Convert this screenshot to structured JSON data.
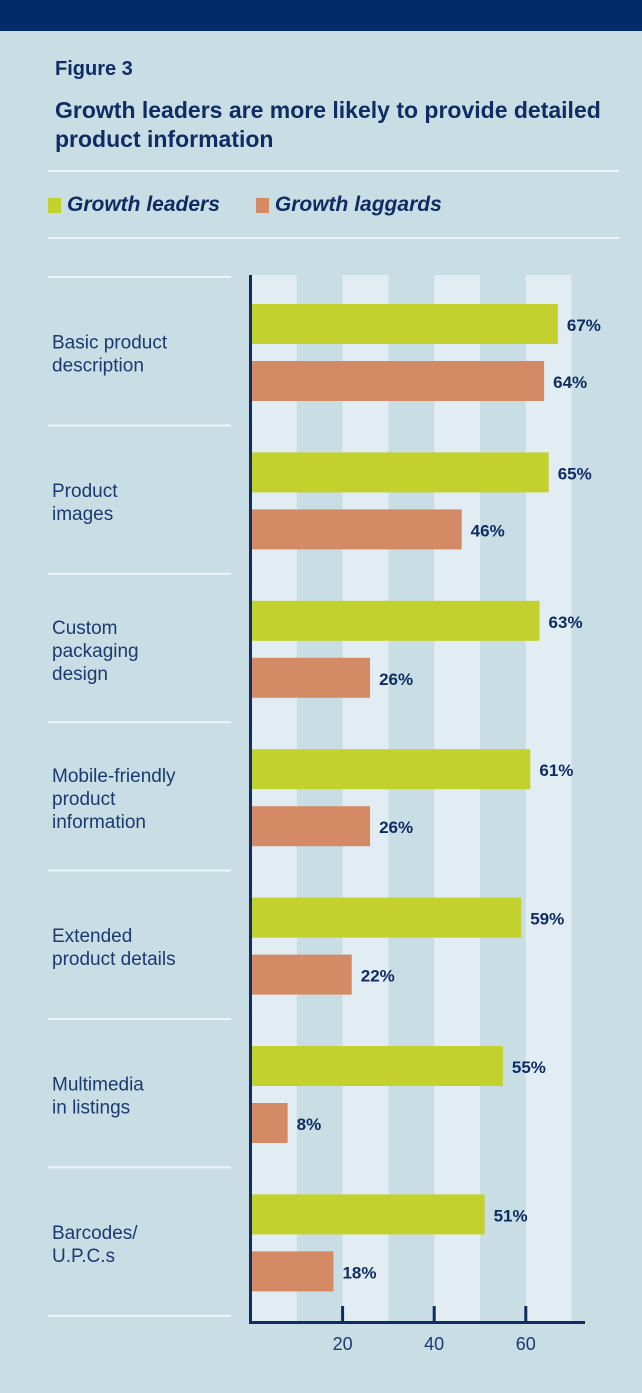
{
  "figure_label": "Figure 3",
  "chart_data": {
    "type": "bar",
    "orientation": "horizontal",
    "title": "Growth leaders are more likely to provide detailed product information",
    "categories": [
      [
        "Basic product",
        "description"
      ],
      [
        "Product",
        "images"
      ],
      [
        "Custom",
        "packaging",
        "design"
      ],
      [
        "Mobile-friendly",
        "product",
        "information"
      ],
      [
        "Extended",
        "product details"
      ],
      [
        "Multimedia",
        "in listings"
      ],
      [
        "Barcodes/",
        "U.P.C.s"
      ]
    ],
    "series": [
      {
        "name": "Growth leaders",
        "color": "#c3d12e",
        "values": [
          67,
          65,
          63,
          61,
          59,
          55,
          51
        ]
      },
      {
        "name": "Growth laggards",
        "color": "#d48a64",
        "values": [
          64,
          46,
          26,
          26,
          22,
          8,
          18
        ]
      }
    ],
    "value_suffix": "%",
    "xlim": [
      0,
      72
    ],
    "xticks": [
      20,
      40,
      60
    ],
    "xlabel": "",
    "ylabel": "",
    "legend": "top-left",
    "grid": "alternating vertical bands every 10"
  }
}
